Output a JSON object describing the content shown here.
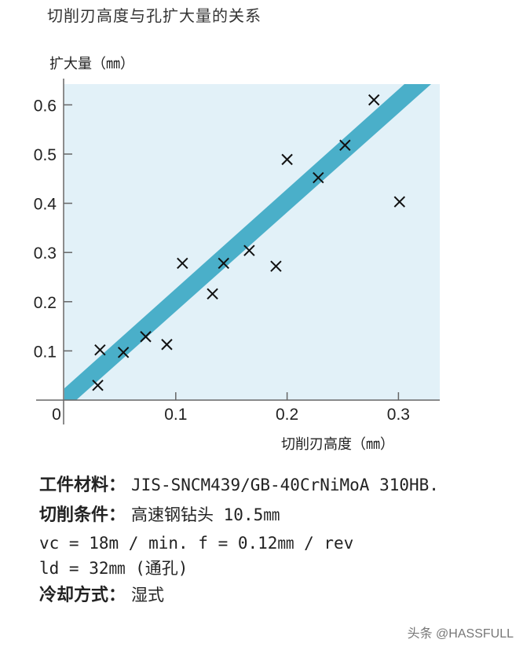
{
  "title": "切削刃高度与孔扩大量的关系",
  "chart_data": {
    "type": "scatter",
    "title": "切削刃高度与孔扩大量的关系",
    "xlabel": "切削刃高度（㎜）",
    "ylabel": "扩大量（㎜）",
    "xlim": [
      0,
      0.335
    ],
    "ylim": [
      0,
      0.64
    ],
    "xticks": [
      "0",
      "0.1",
      "0.2",
      "0.3"
    ],
    "yticks": [
      "0.1",
      "0.2",
      "0.3",
      "0.4",
      "0.5",
      "0.6"
    ],
    "grid": false,
    "legend": null,
    "marker": "x",
    "points": [
      {
        "x": 0.03,
        "y": 0.03
      },
      {
        "x": 0.032,
        "y": 0.102
      },
      {
        "x": 0.053,
        "y": 0.097
      },
      {
        "x": 0.073,
        "y": 0.129
      },
      {
        "x": 0.092,
        "y": 0.113
      },
      {
        "x": 0.106,
        "y": 0.278
      },
      {
        "x": 0.133,
        "y": 0.216
      },
      {
        "x": 0.143,
        "y": 0.278
      },
      {
        "x": 0.166,
        "y": 0.304
      },
      {
        "x": 0.19,
        "y": 0.272
      },
      {
        "x": 0.2,
        "y": 0.489
      },
      {
        "x": 0.228,
        "y": 0.452
      },
      {
        "x": 0.252,
        "y": 0.518
      },
      {
        "x": 0.278,
        "y": 0.61
      },
      {
        "x": 0.301,
        "y": 0.403
      }
    ],
    "trend_band": {
      "description": "shaded linear band from origin to top-right",
      "lower_line": [
        [
          0.011,
          0
        ],
        [
          0.33,
          0.642
        ]
      ],
      "upper_line": [
        [
          0,
          0.024
        ],
        [
          0.306,
          0.642
        ]
      ],
      "color": "#4aafc9"
    },
    "background_color": "#e2f1f8"
  },
  "axes": {
    "y_label": "扩大量（㎜）",
    "x_label": "切削刃高度（㎜）",
    "origin_label": "0"
  },
  "info": {
    "material_key": "工件材料：",
    "material_value": "JIS-SNCM439/GB-40CrNiMoA 310HB.",
    "condition_key": "切削条件：",
    "condition_value": "高速钢钻头 10.5㎜",
    "speed_line": "vc = 18m / min. f = 0.12㎜ / rev",
    "depth_line": "ld = 32㎜ (通孔)",
    "cooling_key": "冷却方式：",
    "cooling_value": "湿式"
  },
  "watermark": "头条 @HASSFULL"
}
